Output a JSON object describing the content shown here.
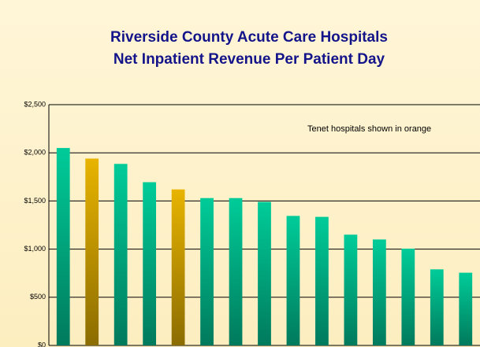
{
  "chart_data": {
    "type": "bar",
    "title": [
      "Riverside County Acute Care Hospitals",
      "Net Inpatient Revenue Per Patient Day"
    ],
    "annotation": "Tenet hospitals shown in orange",
    "categories": [
      null,
      null,
      null,
      null,
      null,
      null,
      null,
      null,
      null,
      null,
      null,
      null,
      null,
      null,
      null
    ],
    "values": [
      2050,
      1940,
      1885,
      1695,
      1620,
      1530,
      1530,
      1490,
      1345,
      1335,
      1150,
      1100,
      1005,
      790,
      755
    ],
    "colors": [
      "#00cc99",
      "#e8b400",
      "#00cc99",
      "#00cc99",
      "#e8b400",
      "#00cc99",
      "#00cc99",
      "#00cc99",
      "#00cc99",
      "#00cc99",
      "#00cc99",
      "#00cc99",
      "#00cc99",
      "#00cc99",
      "#00cc99"
    ],
    "ylim": [
      0,
      2500
    ],
    "yticks": [
      {
        "value": 0,
        "label": "$0"
      },
      {
        "value": 500,
        "label": "$500"
      },
      {
        "value": 1000,
        "label": "$1,000"
      },
      {
        "value": 1500,
        "label": "$1,500"
      },
      {
        "value": 2000,
        "label": "$2,000"
      },
      {
        "value": 2500,
        "label": "$2,500"
      }
    ],
    "grid": true
  }
}
